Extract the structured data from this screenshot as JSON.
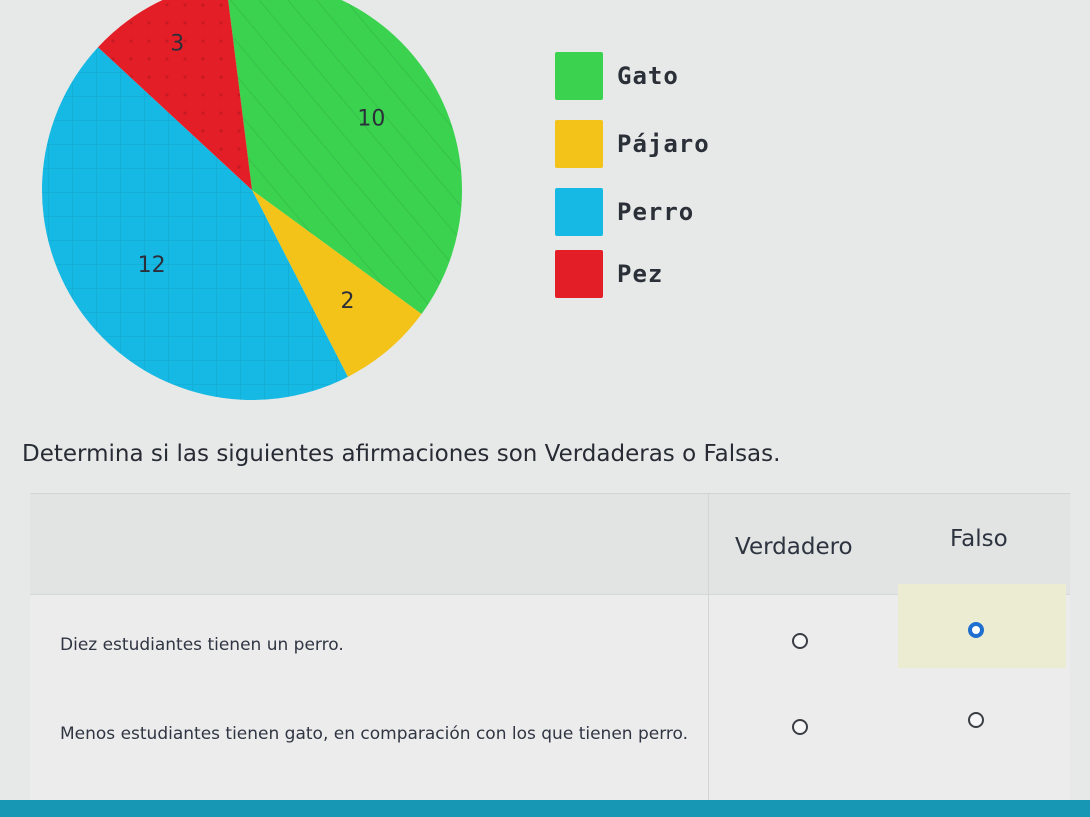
{
  "chart_data": {
    "type": "pie",
    "slices": [
      {
        "label": "Gato",
        "value": 10,
        "color": "#3bd24f"
      },
      {
        "label": "Pájaro",
        "value": 2,
        "color": "#f3c31a"
      },
      {
        "label": "Perro",
        "value": 12,
        "color": "#16b9e3"
      },
      {
        "label": "Pez",
        "value": 3,
        "color": "#e31e27"
      }
    ],
    "legend_position": "right"
  },
  "legend": [
    {
      "label": "Gato",
      "color": "#3bd24f"
    },
    {
      "label": "Pájaro",
      "color": "#f3c31a"
    },
    {
      "label": "Perro",
      "color": "#16b9e3"
    },
    {
      "label": "Pez",
      "color": "#e31e27"
    }
  ],
  "question": "Determina si las siguientes afirmaciones son Verdaderas o Falsas.",
  "table": {
    "headers": {
      "true": "Verdadero",
      "false": "Falso"
    },
    "rows": [
      {
        "statement": "Diez estudiantes tienen un perro.",
        "selected": "false"
      },
      {
        "statement": "Menos estudiantes tienen gato, en comparación con los que tienen perro.",
        "selected": null
      }
    ]
  }
}
